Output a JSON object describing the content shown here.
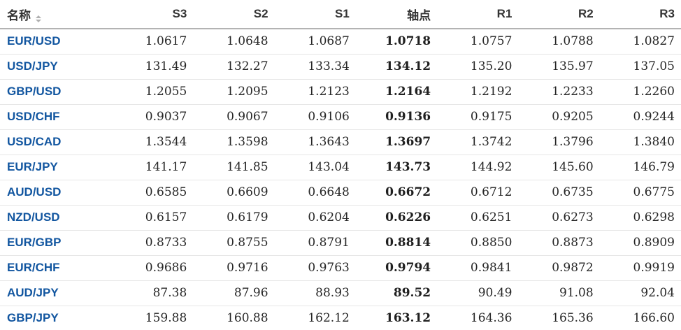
{
  "colors": {
    "pair_link_blue": "#1256a0",
    "header_text": "#333333",
    "number_text": "#262626",
    "header_border": "#b3b3b3",
    "row_border": "#e6e6e6",
    "sort_icon_gray": "#b0b0b0",
    "background": "#ffffff"
  },
  "table": {
    "columns": [
      "名称",
      "S3",
      "S2",
      "S1",
      "轴点",
      "R1",
      "R2",
      "R3"
    ],
    "sort_icon": "sort-arrows",
    "rows": [
      {
        "name": "EUR/USD",
        "s3": "1.0617",
        "s2": "1.0648",
        "s1": "1.0687",
        "pivot": "1.0718",
        "r1": "1.0757",
        "r2": "1.0788",
        "r3": "1.0827"
      },
      {
        "name": "USD/JPY",
        "s3": "131.49",
        "s2": "132.27",
        "s1": "133.34",
        "pivot": "134.12",
        "r1": "135.20",
        "r2": "135.97",
        "r3": "137.05"
      },
      {
        "name": "GBP/USD",
        "s3": "1.2055",
        "s2": "1.2095",
        "s1": "1.2123",
        "pivot": "1.2164",
        "r1": "1.2192",
        "r2": "1.2233",
        "r3": "1.2260"
      },
      {
        "name": "USD/CHF",
        "s3": "0.9037",
        "s2": "0.9067",
        "s1": "0.9106",
        "pivot": "0.9136",
        "r1": "0.9175",
        "r2": "0.9205",
        "r3": "0.9244"
      },
      {
        "name": "USD/CAD",
        "s3": "1.3544",
        "s2": "1.3598",
        "s1": "1.3643",
        "pivot": "1.3697",
        "r1": "1.3742",
        "r2": "1.3796",
        "r3": "1.3840"
      },
      {
        "name": "EUR/JPY",
        "s3": "141.17",
        "s2": "141.85",
        "s1": "143.04",
        "pivot": "143.73",
        "r1": "144.92",
        "r2": "145.60",
        "r3": "146.79"
      },
      {
        "name": "AUD/USD",
        "s3": "0.6585",
        "s2": "0.6609",
        "s1": "0.6648",
        "pivot": "0.6672",
        "r1": "0.6712",
        "r2": "0.6735",
        "r3": "0.6775"
      },
      {
        "name": "NZD/USD",
        "s3": "0.6157",
        "s2": "0.6179",
        "s1": "0.6204",
        "pivot": "0.6226",
        "r1": "0.6251",
        "r2": "0.6273",
        "r3": "0.6298"
      },
      {
        "name": "EUR/GBP",
        "s3": "0.8733",
        "s2": "0.8755",
        "s1": "0.8791",
        "pivot": "0.8814",
        "r1": "0.8850",
        "r2": "0.8873",
        "r3": "0.8909"
      },
      {
        "name": "EUR/CHF",
        "s3": "0.9686",
        "s2": "0.9716",
        "s1": "0.9763",
        "pivot": "0.9794",
        "r1": "0.9841",
        "r2": "0.9872",
        "r3": "0.9919"
      },
      {
        "name": "AUD/JPY",
        "s3": "87.38",
        "s2": "87.96",
        "s1": "88.93",
        "pivot": "89.52",
        "r1": "90.49",
        "r2": "91.08",
        "r3": "92.04"
      },
      {
        "name": "GBP/JPY",
        "s3": "159.88",
        "s2": "160.88",
        "s1": "162.12",
        "pivot": "163.12",
        "r1": "164.36",
        "r2": "165.36",
        "r3": "166.60"
      }
    ]
  }
}
